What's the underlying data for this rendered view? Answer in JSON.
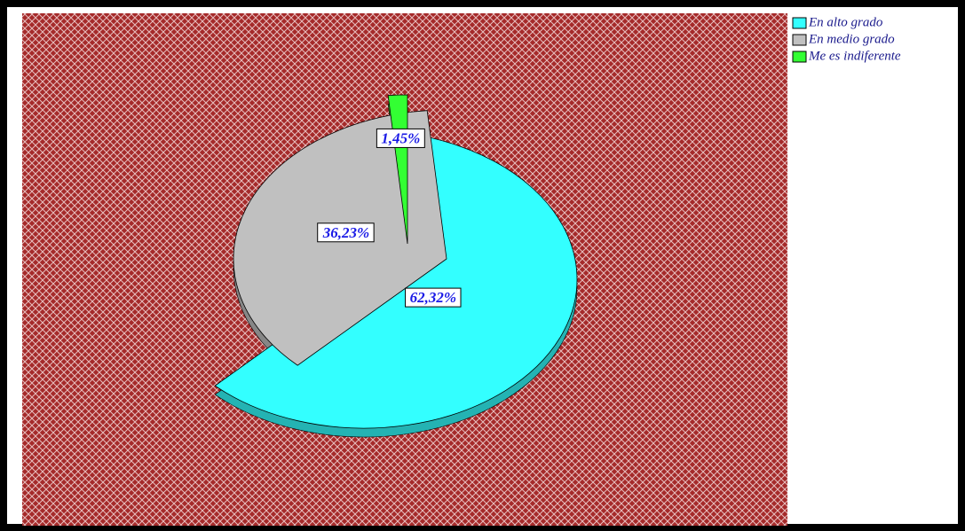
{
  "chart_data": {
    "type": "pie",
    "categories": [
      "En alto grado",
      "En medio grado",
      "Me es indiferente"
    ],
    "values": [
      62.32,
      36.23,
      1.45
    ],
    "value_labels": [
      "62,32%",
      "36,23%",
      "1,45%"
    ],
    "colors": [
      "#33ffff",
      "#c0c0c0",
      "#33ff33"
    ],
    "legend": "top-right"
  }
}
